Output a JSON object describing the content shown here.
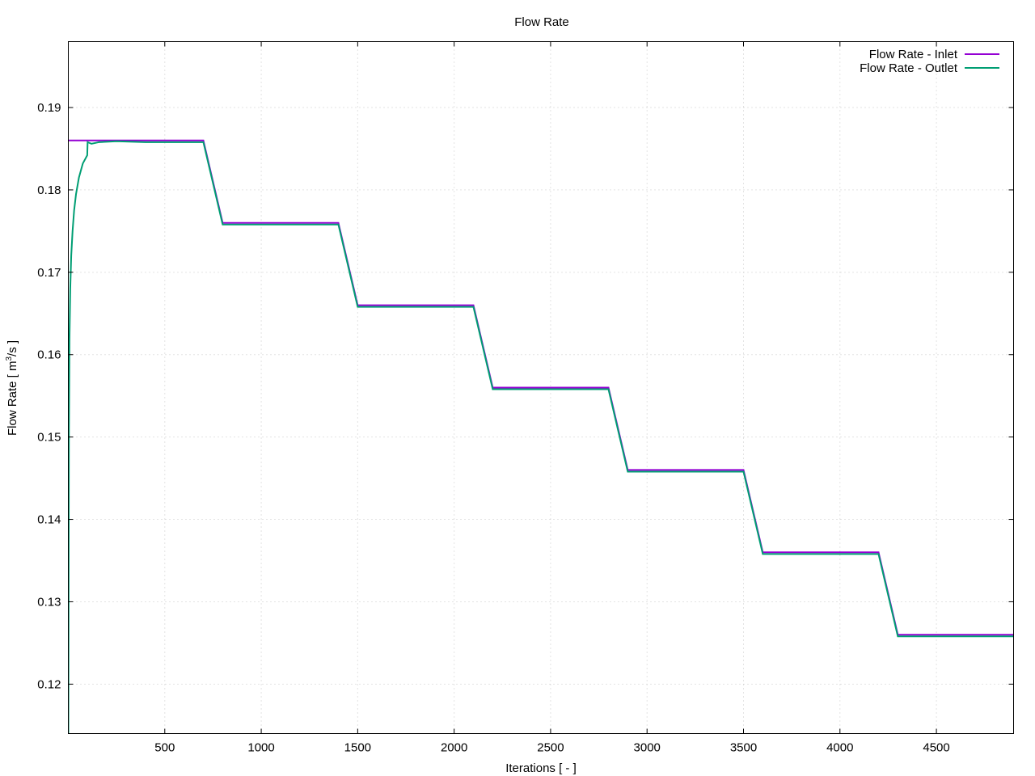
{
  "chart_data": {
    "type": "line",
    "title": "Flow Rate",
    "xlabel": "Iterations [ - ]",
    "ylabel_prefix": "Flow Rate [ m",
    "ylabel_sup": "3",
    "ylabel_suffix": "/s ]",
    "xlim": [
      0,
      4900
    ],
    "ylim": [
      0.114,
      0.198
    ],
    "xticks": [
      500,
      1000,
      1500,
      2000,
      2500,
      3000,
      3500,
      4000,
      4500
    ],
    "yticks": [
      0.12,
      0.13,
      0.14,
      0.15,
      0.16,
      0.17,
      0.18,
      0.19
    ],
    "ytick_labels": [
      "0.12",
      "0.13",
      "0.14",
      "0.15",
      "0.16",
      "0.17",
      "0.18",
      "0.19"
    ],
    "grid": true,
    "legend_position": "top-right",
    "series": [
      {
        "name": "Flow Rate - Inlet",
        "color": "#9400d3",
        "points": [
          [
            0,
            0.186
          ],
          [
            700,
            0.186
          ],
          [
            800,
            0.176
          ],
          [
            1400,
            0.176
          ],
          [
            1500,
            0.166
          ],
          [
            2100,
            0.166
          ],
          [
            2200,
            0.156
          ],
          [
            2800,
            0.156
          ],
          [
            2900,
            0.146
          ],
          [
            3500,
            0.146
          ],
          [
            3600,
            0.136
          ],
          [
            4200,
            0.136
          ],
          [
            4300,
            0.126
          ],
          [
            4900,
            0.126
          ]
        ]
      },
      {
        "name": "Flow Rate - Outlet",
        "color": "#009e73",
        "points": [
          [
            0,
            0.114
          ],
          [
            3,
            0.15
          ],
          [
            6,
            0.162
          ],
          [
            10,
            0.168
          ],
          [
            15,
            0.172
          ],
          [
            22,
            0.175
          ],
          [
            30,
            0.1775
          ],
          [
            40,
            0.1795
          ],
          [
            55,
            0.1815
          ],
          [
            75,
            0.1832
          ],
          [
            98,
            0.1842
          ],
          [
            100,
            0.1858
          ],
          [
            120,
            0.1856
          ],
          [
            160,
            0.1858
          ],
          [
            250,
            0.1859
          ],
          [
            400,
            0.1858
          ],
          [
            700,
            0.1858
          ],
          [
            800,
            0.1758
          ],
          [
            1400,
            0.1758
          ],
          [
            1500,
            0.1658
          ],
          [
            2100,
            0.1658
          ],
          [
            2200,
            0.1558
          ],
          [
            2800,
            0.1558
          ],
          [
            2900,
            0.1458
          ],
          [
            3500,
            0.1458
          ],
          [
            3600,
            0.1358
          ],
          [
            4200,
            0.1358
          ],
          [
            4300,
            0.1258
          ],
          [
            4900,
            0.1258
          ]
        ]
      }
    ]
  }
}
